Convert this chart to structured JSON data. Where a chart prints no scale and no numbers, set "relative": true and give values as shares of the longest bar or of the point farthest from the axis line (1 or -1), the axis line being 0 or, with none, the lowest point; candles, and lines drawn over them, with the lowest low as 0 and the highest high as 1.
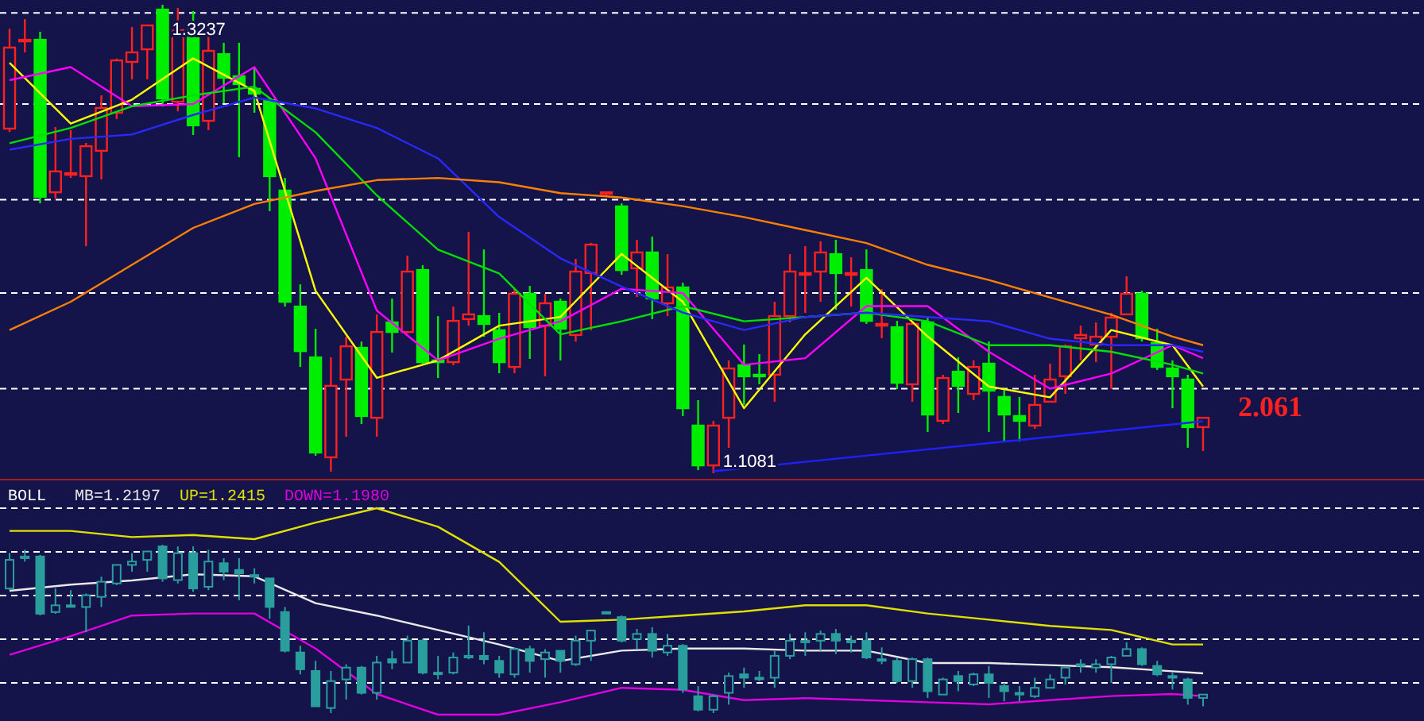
{
  "chart_data": [
    {
      "type": "candlestick",
      "categories": [
        null,
        null,
        null,
        null,
        null,
        null,
        null,
        null,
        null,
        null,
        null,
        null,
        null,
        null,
        null,
        null,
        null,
        null,
        null,
        null,
        null,
        null,
        null,
        null,
        null,
        null,
        null,
        null,
        null,
        null,
        null,
        null,
        null,
        null,
        null,
        null,
        null,
        null,
        null,
        null,
        null,
        null,
        null,
        null,
        null,
        null,
        null,
        null,
        null,
        null,
        null,
        null,
        null,
        null,
        null,
        null,
        null,
        null,
        null,
        null,
        null,
        null,
        null,
        null,
        null,
        null,
        null,
        null,
        null,
        null,
        null,
        null,
        null,
        null,
        null,
        null,
        null,
        null,
        null
      ],
      "ohlc": [
        [
          1.2667,
          1.3127,
          1.2652,
          1.304
        ],
        [
          1.3069,
          1.3171,
          1.3018,
          1.3076
        ],
        [
          1.3076,
          1.3113,
          1.2323,
          1.2353
        ],
        [
          1.2374,
          1.2674,
          1.2345,
          1.247
        ],
        [
          1.2455,
          1.266,
          1.244,
          1.2462
        ],
        [
          1.2448,
          1.2601,
          1.2126,
          1.2586
        ],
        [
          1.2565,
          1.282,
          1.2433,
          1.2762
        ],
        [
          1.274,
          1.2989,
          1.2711,
          1.2981
        ],
        [
          1.2974,
          1.3135,
          1.2894,
          1.3018
        ],
        [
          1.3032,
          1.3142,
          1.2894,
          1.3142
        ],
        [
          1.3215,
          1.3237,
          1.2769,
          1.2806
        ],
        [
          1.2791,
          1.3222,
          1.2747,
          1.312
        ],
        [
          1.312,
          1.3208,
          1.2638,
          1.2682
        ],
        [
          1.2703,
          1.3164,
          1.266,
          1.3025
        ],
        [
          1.301,
          1.3062,
          1.2784,
          1.2901
        ],
        [
          1.2908,
          1.3062,
          1.2535,
          1.2872
        ],
        [
          1.285,
          1.2945,
          1.274,
          1.2828
        ],
        [
          1.2798,
          1.2806,
          1.2287,
          1.2448
        ],
        [
          1.2382,
          1.244,
          1.1848,
          1.187
        ],
        [
          1.1848,
          1.195,
          1.157,
          1.1643
        ],
        [
          1.1614,
          1.1746,
          1.1161,
          1.1176
        ],
        [
          1.1154,
          1.1614,
          1.1088,
          1.1483
        ],
        [
          1.1512,
          1.1709,
          1.1249,
          1.1665
        ],
        [
          1.1658,
          1.1687,
          1.1307,
          1.1344
        ],
        [
          1.1336,
          1.1812,
          1.1249,
          1.1731
        ],
        [
          1.1775,
          1.1885,
          1.1636,
          1.1731
        ],
        [
          1.1731,
          1.2082,
          1.1724,
          1.2009
        ],
        [
          1.2016,
          1.2038,
          1.1585,
          1.1592
        ],
        [
          1.16,
          1.1804,
          1.1519,
          1.1592
        ],
        [
          1.1592,
          1.1848,
          1.1578,
          1.1782
        ],
        [
          1.179,
          1.2192,
          1.176,
          1.1812
        ],
        [
          1.1804,
          1.2111,
          1.1709,
          1.1768
        ],
        [
          1.1739,
          1.1819,
          1.1541,
          1.1592
        ],
        [
          1.157,
          1.1929,
          1.1541,
          1.1907
        ],
        [
          1.1907,
          1.1943,
          1.1607,
          1.1753
        ],
        [
          1.176,
          1.1907,
          1.1527,
          1.1863
        ],
        [
          1.187,
          1.1885,
          1.16,
          1.1746
        ],
        [
          1.1717,
          1.2067,
          1.1687,
          1.2009
        ],
        [
          1.2002,
          1.2141,
          1.1739,
          1.2133
        ],
        [
          1.2367,
          1.2374,
          1.236,
          1.2374
        ],
        [
          1.2309,
          1.2323,
          1.1994,
          1.2016
        ],
        [
          1.2024,
          1.2155,
          1.1892,
          1.2097
        ],
        [
          1.2097,
          1.217,
          1.179,
          1.1885
        ],
        [
          1.1863,
          1.2089,
          1.1804,
          1.1936
        ],
        [
          1.1936,
          1.1958,
          1.1344,
          1.138
        ],
        [
          1.13,
          1.1417,
          1.1095,
          1.1117
        ],
        [
          1.1117,
          1.1322,
          1.1081,
          1.13
        ],
        [
          1.1336,
          1.16,
          1.1198,
          1.1563
        ],
        [
          1.1578,
          1.1673,
          1.1395,
          1.1527
        ],
        [
          1.1534,
          1.1629,
          1.149,
          1.1527
        ],
        [
          1.1534,
          1.187,
          1.141,
          1.1804
        ],
        [
          1.1804,
          1.2089,
          1.1775,
          1.2009
        ],
        [
          1.1994,
          1.2126,
          1.1819,
          1.2002
        ],
        [
          1.2009,
          1.2148,
          1.187,
          1.2097
        ],
        [
          1.2089,
          1.2155,
          1.1834,
          1.2002
        ],
        [
          1.1994,
          1.2075,
          1.1848,
          1.2002
        ],
        [
          1.2016,
          1.2111,
          1.1768,
          1.1782
        ],
        [
          1.176,
          1.1929,
          1.1702,
          1.1768
        ],
        [
          1.1753,
          1.1782,
          1.1468,
          1.1497
        ],
        [
          1.149,
          1.1782,
          1.141,
          1.1768
        ],
        [
          1.1775,
          1.1797,
          1.1271,
          1.1351
        ],
        [
          1.1322,
          1.1534,
          1.1307,
          1.1519
        ],
        [
          1.1548,
          1.1614,
          1.1358,
          1.1483
        ],
        [
          1.1446,
          1.16,
          1.1417,
          1.157
        ],
        [
          1.1585,
          1.1687,
          1.1271,
          1.1461
        ],
        [
          1.1432,
          1.1468,
          1.1227,
          1.1351
        ],
        [
          1.1344,
          1.1432,
          1.1227,
          1.1322
        ],
        [
          1.13,
          1.1534,
          1.1285,
          1.1395
        ],
        [
          1.141,
          1.1585,
          1.141,
          1.1512
        ],
        [
          1.1527,
          1.1673,
          1.1446,
          1.1665
        ],
        [
          1.1702,
          1.176,
          1.16,
          1.1717
        ],
        [
          1.1673,
          1.1775,
          1.1592,
          1.1709
        ],
        [
          1.1709,
          1.1819,
          1.1468,
          1.1797
        ],
        [
          1.1812,
          1.1987,
          1.1812,
          1.1907
        ],
        [
          1.1907,
          1.1921,
          1.1687,
          1.1702
        ],
        [
          1.168,
          1.1746,
          1.1556,
          1.157
        ],
        [
          1.1563,
          1.16,
          1.138,
          1.1527
        ],
        [
          1.1512,
          1.1534,
          1.1198,
          1.1293
        ],
        [
          1.1293,
          1.1336,
          1.1183,
          1.1336
        ]
      ],
      "series": [
        {
          "type": "line",
          "color": "#ffff00",
          "values": [
            1.297,
            null,
            null,
            null,
            1.269,
            null,
            null,
            null,
            1.28,
            null,
            null,
            null,
            1.299,
            null,
            null,
            null,
            1.284,
            null,
            null,
            null,
            1.192,
            null,
            null,
            null,
            1.152,
            null,
            null,
            null,
            1.16,
            null,
            null,
            null,
            1.176,
            null,
            null,
            null,
            1.18,
            null,
            null,
            null,
            1.209,
            null,
            null,
            null,
            1.187,
            null,
            null,
            null,
            1.138,
            null,
            null,
            null,
            1.172,
            null,
            null,
            null,
            1.198,
            null,
            null,
            null,
            1.171,
            null,
            null,
            null,
            1.148,
            null,
            null,
            null,
            1.143,
            null,
            null,
            null,
            1.174,
            null,
            null,
            null,
            1.167,
            null,
            1.148
          ]
        },
        {
          "type": "line",
          "color": "#ff00ff",
          "values": [
            1.289,
            null,
            null,
            null,
            1.295,
            null,
            null,
            null,
            1.277,
            null,
            null,
            null,
            1.278,
            null,
            null,
            null,
            1.295,
            null,
            null,
            null,
            1.253,
            null,
            null,
            null,
            1.183,
            null,
            null,
            null,
            1.16,
            null,
            null,
            null,
            1.17,
            null,
            null,
            null,
            1.178,
            null,
            null,
            null,
            1.193,
            null,
            null,
            null,
            1.191,
            null,
            null,
            null,
            1.158,
            null,
            null,
            null,
            1.161,
            null,
            null,
            null,
            1.185,
            null,
            null,
            null,
            1.185,
            null,
            null,
            null,
            1.164,
            null,
            null,
            null,
            1.147,
            null,
            null,
            null,
            1.154,
            null,
            null,
            null,
            1.167,
            null,
            1.161
          ]
        },
        {
          "type": "line",
          "color": "#00e000",
          "values": [
            1.26,
            null,
            null,
            null,
            1.267,
            null,
            null,
            null,
            1.277,
            null,
            null,
            null,
            1.282,
            null,
            null,
            null,
            1.286,
            null,
            null,
            null,
            1.265,
            null,
            null,
            null,
            1.236,
            null,
            null,
            null,
            1.211,
            null,
            null,
            null,
            1.2,
            null,
            null,
            null,
            1.172,
            null,
            null,
            null,
            1.178,
            null,
            null,
            null,
            1.185,
            null,
            null,
            null,
            1.178,
            null,
            null,
            null,
            1.18,
            null,
            null,
            null,
            1.182,
            null,
            null,
            null,
            1.178,
            null,
            null,
            null,
            1.167,
            null,
            null,
            null,
            1.167,
            null,
            null,
            null,
            1.164,
            null,
            null,
            null,
            1.158,
            null,
            1.154
          ]
        },
        {
          "type": "line",
          "color": "#2828ff",
          "values": [
            1.257,
            null,
            null,
            null,
            1.262,
            null,
            null,
            null,
            1.264,
            null,
            null,
            null,
            1.273,
            null,
            null,
            null,
            1.281,
            null,
            null,
            null,
            1.276,
            null,
            null,
            null,
            1.267,
            null,
            null,
            null,
            1.253,
            null,
            null,
            null,
            1.226,
            null,
            null,
            null,
            1.207,
            null,
            null,
            null,
            1.194,
            null,
            null,
            null,
            1.182,
            null,
            null,
            null,
            1.174,
            null,
            null,
            null,
            1.18,
            null,
            null,
            null,
            1.182,
            null,
            null,
            null,
            1.18,
            null,
            null,
            null,
            1.178,
            null,
            null,
            null,
            1.17,
            null,
            null,
            null,
            1.167,
            null,
            null,
            null,
            1.167,
            null,
            1.164
          ]
        },
        {
          "type": "line",
          "color": "#ff8000",
          "values": [
            1.174,
            null,
            null,
            null,
            1.187,
            null,
            null,
            null,
            1.204,
            null,
            null,
            null,
            1.221,
            null,
            null,
            null,
            1.232,
            null,
            null,
            null,
            1.238,
            null,
            null,
            null,
            1.243,
            null,
            null,
            null,
            1.244,
            null,
            null,
            null,
            1.242,
            null,
            null,
            null,
            1.237,
            null,
            null,
            null,
            1.235,
            null,
            null,
            null,
            1.231,
            null,
            null,
            null,
            1.226,
            null,
            null,
            null,
            1.22,
            null,
            null,
            null,
            1.214,
            null,
            null,
            null,
            1.204,
            null,
            null,
            null,
            1.197,
            null,
            null,
            null,
            1.189,
            null,
            null,
            null,
            1.181,
            null,
            null,
            null,
            1.171,
            null,
            1.167
          ]
        },
        {
          "type": "line",
          "color": "#2020ff",
          "values": [
            null,
            null,
            null,
            null,
            null,
            null,
            null,
            null,
            null,
            null,
            null,
            null,
            null,
            null,
            null,
            null,
            null,
            null,
            null,
            null,
            null,
            null,
            null,
            null,
            null,
            null,
            null,
            null,
            null,
            null,
            null,
            null,
            null,
            null,
            null,
            null,
            null,
            null,
            null,
            null,
            null,
            null,
            null,
            null,
            null,
            null,
            1.109,
            null,
            null,
            null,
            null,
            null,
            null,
            null,
            null,
            null,
            null,
            null,
            null,
            null,
            null,
            null,
            null,
            null,
            null,
            null,
            null,
            null,
            null,
            null,
            null,
            null,
            null,
            null,
            null,
            null,
            null,
            null,
            1.132
          ]
        }
      ],
      "ylim": [
        1.1066,
        1.3259
      ],
      "yticks": [
        {
          "value": 1.32,
          "label": null
        },
        {
          "value": 1.278,
          "label": null
        },
        {
          "value": 1.234,
          "label": null
        },
        {
          "value": 1.191,
          "label": null
        },
        {
          "value": 1.147,
          "label": null
        }
      ],
      "grid": "y",
      "annotations": [
        "1.3237",
        "1.1081",
        "2.061"
      ]
    },
    {
      "type": "line",
      "relative": true,
      "title": "BOLL",
      "grid": true,
      "categories": [
        null,
        null,
        null,
        null,
        null,
        null,
        null,
        null,
        null,
        null,
        null,
        null,
        null,
        null,
        null,
        null,
        null,
        null,
        null,
        null,
        null,
        null,
        null,
        null,
        null,
        null,
        null,
        null,
        null,
        null,
        null,
        null,
        null,
        null,
        null,
        null,
        null,
        null,
        null,
        null,
        null,
        null,
        null,
        null,
        null,
        null,
        null,
        null,
        null,
        null,
        null,
        null,
        null,
        null,
        null,
        null,
        null,
        null,
        null,
        null,
        null,
        null,
        null,
        null,
        null,
        null,
        null,
        null,
        null,
        null,
        null,
        null,
        null,
        null,
        null,
        null,
        null,
        null,
        null
      ],
      "series": [
        {
          "type": "line",
          "name": "MB=1.2197",
          "color": "#e8e8e8",
          "values": [
            0.6,
            null,
            null,
            null,
            0.63,
            null,
            null,
            null,
            0.65,
            null,
            null,
            null,
            0.68,
            null,
            null,
            null,
            0.67,
            null,
            null,
            null,
            0.54,
            null,
            null,
            null,
            0.48,
            null,
            null,
            null,
            0.41,
            null,
            null,
            null,
            0.34,
            null,
            null,
            null,
            0.26,
            null,
            null,
            null,
            0.31,
            null,
            null,
            null,
            0.32,
            null,
            null,
            null,
            0.32,
            null,
            null,
            null,
            0.31,
            null,
            null,
            null,
            0.31,
            null,
            null,
            null,
            0.25,
            null,
            null,
            null,
            0.25,
            null,
            null,
            null,
            0.24,
            null,
            null,
            null,
            0.23,
            null,
            null,
            null,
            0.21,
            null,
            0.2
          ]
        },
        {
          "type": "line",
          "name": "UP=1.2415",
          "color": "#e0e000",
          "values": [
            0.89,
            null,
            null,
            null,
            0.89,
            null,
            null,
            null,
            0.86,
            null,
            null,
            null,
            0.87,
            null,
            null,
            null,
            0.85,
            null,
            null,
            null,
            0.93,
            null,
            null,
            null,
            1.0,
            null,
            null,
            null,
            0.91,
            null,
            null,
            null,
            0.74,
            null,
            null,
            null,
            0.45,
            null,
            null,
            null,
            0.46,
            null,
            null,
            null,
            0.48,
            null,
            null,
            null,
            0.5,
            null,
            null,
            null,
            0.53,
            null,
            null,
            null,
            0.53,
            null,
            null,
            null,
            0.49,
            null,
            null,
            null,
            0.46,
            null,
            null,
            null,
            0.43,
            null,
            null,
            null,
            0.41,
            null,
            null,
            null,
            0.34,
            null,
            0.34
          ]
        },
        {
          "type": "line",
          "name": "DOWN=1.1980",
          "color": "#e000e0",
          "values": [
            0.29,
            null,
            null,
            null,
            0.38,
            null,
            null,
            null,
            0.48,
            null,
            null,
            null,
            0.49,
            null,
            null,
            null,
            0.49,
            null,
            null,
            null,
            0.32,
            null,
            null,
            null,
            0.1,
            null,
            null,
            null,
            0.0,
            null,
            null,
            null,
            0.0,
            null,
            null,
            null,
            0.06,
            null,
            null,
            null,
            0.13,
            null,
            null,
            null,
            0.12,
            null,
            null,
            null,
            0.07,
            null,
            null,
            null,
            0.08,
            null,
            null,
            null,
            0.07,
            null,
            null,
            null,
            0.06,
            null,
            null,
            null,
            0.05,
            null,
            null,
            null,
            0.07,
            null,
            null,
            null,
            0.09,
            null,
            null,
            null,
            0.1,
            null,
            0.09
          ]
        }
      ]
    },
    {
      "type": "candlestick",
      "relative": true,
      "color": "#2a9d9d",
      "categories": [
        null,
        null,
        null,
        null,
        null,
        null,
        null,
        null,
        null,
        null,
        null,
        null,
        null,
        null,
        null,
        null,
        null,
        null,
        null,
        null,
        null,
        null,
        null,
        null,
        null,
        null,
        null,
        null,
        null,
        null,
        null,
        null,
        null,
        null,
        null,
        null,
        null,
        null,
        null,
        null,
        null,
        null,
        null,
        null,
        null,
        null,
        null,
        null,
        null,
        null,
        null,
        null,
        null,
        null,
        null,
        null,
        null,
        null,
        null,
        null,
        null,
        null,
        null,
        null,
        null,
        null,
        null,
        null,
        null,
        null,
        null,
        null,
        null,
        null,
        null,
        null,
        null,
        null,
        null
      ],
      "ohlc": [
        [
          0.74,
          0.95,
          0.73,
          0.91
        ],
        [
          0.92,
          0.97,
          0.9,
          0.93
        ],
        [
          0.93,
          0.94,
          0.58,
          0.59
        ],
        [
          0.6,
          0.74,
          0.59,
          0.64
        ],
        [
          0.64,
          0.73,
          0.63,
          0.64
        ],
        [
          0.63,
          0.71,
          0.48,
          0.7
        ],
        [
          0.69,
          0.81,
          0.63,
          0.78
        ],
        [
          0.77,
          0.88,
          0.76,
          0.88
        ],
        [
          0.88,
          0.95,
          0.84,
          0.9
        ],
        [
          0.91,
          0.96,
          0.84,
          0.96
        ],
        [
          0.99,
          1.0,
          0.78,
          0.8
        ],
        [
          0.79,
          0.99,
          0.77,
          0.95
        ],
        [
          0.95,
          0.99,
          0.72,
          0.74
        ],
        [
          0.75,
          0.97,
          0.73,
          0.9
        ],
        [
          0.89,
          0.92,
          0.79,
          0.84
        ],
        [
          0.85,
          0.92,
          0.67,
          0.83
        ],
        [
          0.82,
          0.86,
          0.77,
          0.81
        ],
        [
          0.8,
          0.8,
          0.56,
          0.63
        ],
        [
          0.6,
          0.63,
          0.36,
          0.37
        ],
        [
          0.36,
          0.4,
          0.23,
          0.26
        ],
        [
          0.25,
          0.31,
          0.04,
          0.04
        ],
        [
          0.03,
          0.25,
          0.0,
          0.19
        ],
        [
          0.2,
          0.29,
          0.08,
          0.27
        ],
        [
          0.27,
          0.28,
          0.11,
          0.12
        ],
        [
          0.12,
          0.34,
          0.08,
          0.3
        ],
        [
          0.32,
          0.37,
          0.26,
          0.3
        ],
        [
          0.3,
          0.46,
          0.3,
          0.43
        ],
        [
          0.43,
          0.44,
          0.23,
          0.24
        ],
        [
          0.24,
          0.34,
          0.2,
          0.24
        ],
        [
          0.24,
          0.36,
          0.23,
          0.33
        ],
        [
          0.33,
          0.52,
          0.32,
          0.34
        ],
        [
          0.34,
          0.48,
          0.29,
          0.32
        ],
        [
          0.31,
          0.34,
          0.21,
          0.24
        ],
        [
          0.23,
          0.39,
          0.21,
          0.38
        ],
        [
          0.38,
          0.4,
          0.24,
          0.31
        ],
        [
          0.32,
          0.38,
          0.21,
          0.36
        ],
        [
          0.37,
          0.37,
          0.24,
          0.31
        ],
        [
          0.29,
          0.46,
          0.28,
          0.43
        ],
        [
          0.43,
          0.49,
          0.31,
          0.49
        ],
        [
          0.6,
          0.6,
          0.59,
          0.6
        ],
        [
          0.57,
          0.58,
          0.42,
          0.43
        ],
        [
          0.44,
          0.5,
          0.38,
          0.47
        ],
        [
          0.47,
          0.51,
          0.33,
          0.37
        ],
        [
          0.36,
          0.47,
          0.34,
          0.4
        ],
        [
          0.4,
          0.41,
          0.12,
          0.14
        ],
        [
          0.1,
          0.16,
          0.01,
          0.02
        ],
        [
          0.02,
          0.11,
          0.0,
          0.1
        ],
        [
          0.12,
          0.24,
          0.05,
          0.22
        ],
        [
          0.23,
          0.27,
          0.15,
          0.21
        ],
        [
          0.21,
          0.25,
          0.19,
          0.21
        ],
        [
          0.21,
          0.37,
          0.15,
          0.34
        ],
        [
          0.34,
          0.47,
          0.32,
          0.43
        ],
        [
          0.42,
          0.48,
          0.34,
          0.43
        ],
        [
          0.43,
          0.49,
          0.37,
          0.47
        ],
        [
          0.47,
          0.5,
          0.35,
          0.43
        ],
        [
          0.42,
          0.46,
          0.36,
          0.43
        ],
        [
          0.43,
          0.48,
          0.32,
          0.33
        ],
        [
          0.32,
          0.39,
          0.29,
          0.32
        ],
        [
          0.31,
          0.33,
          0.18,
          0.19
        ],
        [
          0.19,
          0.33,
          0.15,
          0.32
        ],
        [
          0.32,
          0.33,
          0.09,
          0.13
        ],
        [
          0.11,
          0.21,
          0.11,
          0.2
        ],
        [
          0.22,
          0.25,
          0.13,
          0.19
        ],
        [
          0.17,
          0.24,
          0.16,
          0.23
        ],
        [
          0.23,
          0.28,
          0.09,
          0.18
        ],
        [
          0.16,
          0.18,
          0.07,
          0.13
        ],
        [
          0.12,
          0.16,
          0.07,
          0.11
        ],
        [
          0.1,
          0.21,
          0.09,
          0.15
        ],
        [
          0.15,
          0.23,
          0.15,
          0.2
        ],
        [
          0.21,
          0.27,
          0.17,
          0.27
        ],
        [
          0.29,
          0.32,
          0.24,
          0.29
        ],
        [
          0.27,
          0.32,
          0.24,
          0.29
        ],
        [
          0.29,
          0.34,
          0.18,
          0.33
        ],
        [
          0.34,
          0.42,
          0.34,
          0.38
        ],
        [
          0.38,
          0.39,
          0.28,
          0.29
        ],
        [
          0.28,
          0.31,
          0.22,
          0.23
        ],
        [
          0.22,
          0.24,
          0.14,
          0.21
        ],
        [
          0.2,
          0.21,
          0.05,
          0.09
        ],
        [
          0.09,
          0.11,
          0.04,
          0.11
        ]
      ]
    }
  ]
}
